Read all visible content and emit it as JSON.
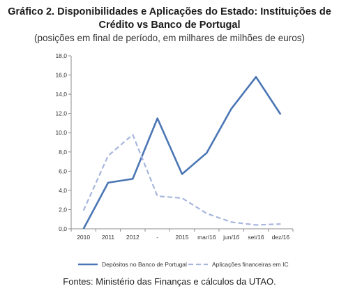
{
  "header": {
    "title_line1": "Gráfico 2. Disponibilidades e Aplicações do Estado: Instituições de",
    "title_line2": "Crédito vs Banco de Portugal",
    "subtitle": "(posições em final de período, em milhares de milhões de euros)"
  },
  "footer": {
    "source": "Fontes: Ministério das Finanças e cálculos da UTAO."
  },
  "colors": {
    "deposits": "#4a76b4",
    "applications": "#a7b6dd",
    "axis": "#8c8c8c"
  },
  "chart_data": {
    "type": "line",
    "categories": [
      "2010",
      "2011",
      "2012",
      "-",
      "2015",
      "mar/16",
      "jun/16",
      "set/16",
      "dez/16"
    ],
    "ylim": [
      0,
      18
    ],
    "yticks": [
      "0,0",
      "2,0",
      "4,0",
      "6,0",
      "8,0",
      "10,0",
      "12,0",
      "14,0",
      "16,0",
      "18,0"
    ],
    "ytick_values": [
      0,
      2,
      4,
      6,
      8,
      10,
      12,
      14,
      16,
      18
    ],
    "grid": false,
    "legend_position": "bottom",
    "series": [
      {
        "name": "Depósitos no Banco de Portugal",
        "style": "solid",
        "values": [
          0.0,
          4.8,
          5.2,
          11.5,
          5.7,
          7.9,
          12.5,
          15.8,
          11.9
        ]
      },
      {
        "name": "Aplicações financeiras em IC",
        "style": "dashed",
        "values": [
          1.9,
          7.6,
          9.8,
          3.4,
          3.2,
          1.6,
          0.7,
          0.4,
          0.5
        ]
      }
    ]
  }
}
